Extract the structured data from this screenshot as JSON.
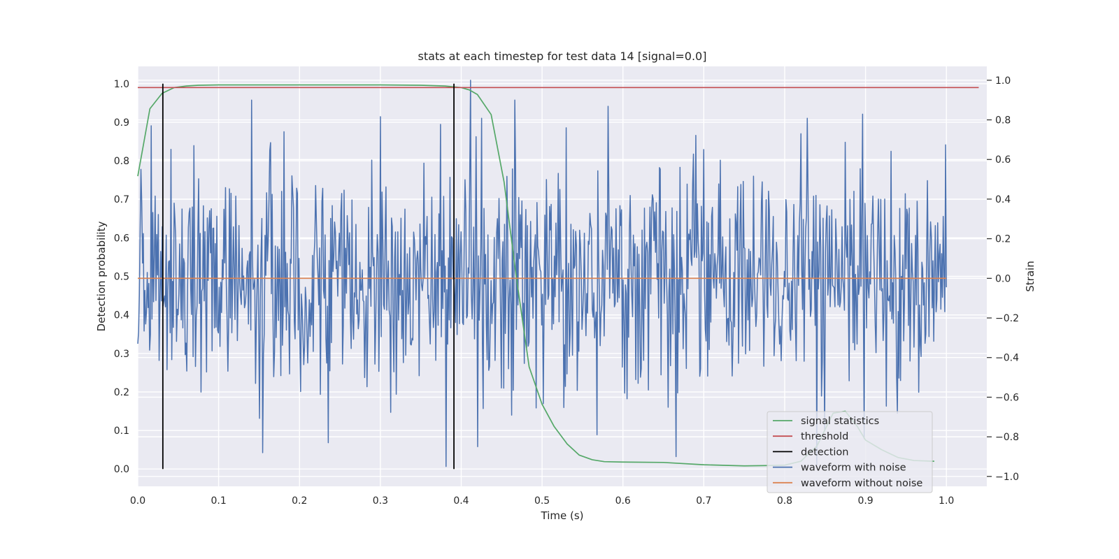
{
  "chart_data": {
    "type": "line",
    "title": "stats at each timestep for test data 14 [signal=0.0]",
    "xlabel": "Time (s)",
    "ylabel": "Detection probability",
    "ylabel_right": "Strain",
    "xlim": [
      0.0,
      1.05
    ],
    "ylim": [
      -0.045,
      1.045
    ],
    "ylim_right": [
      -1.05,
      1.07
    ],
    "x_ticks": [
      "0.0",
      "0.1",
      "0.2",
      "0.3",
      "0.4",
      "0.5",
      "0.6",
      "0.7",
      "0.8",
      "0.9",
      "1.0"
    ],
    "y_ticks": [
      "0.0",
      "0.1",
      "0.2",
      "0.3",
      "0.4",
      "0.5",
      "0.6",
      "0.7",
      "0.8",
      "0.9",
      "1.0"
    ],
    "y_right_ticks": [
      "−1.0",
      "−0.8",
      "−0.6",
      "−0.4",
      "−0.2",
      "0.0",
      "0.2",
      "0.4",
      "0.6",
      "0.8",
      "1.0"
    ],
    "grid": true,
    "legend_position": "lower-right",
    "legend": [
      {
        "label": "signal statistics",
        "color": "#55a868"
      },
      {
        "label": "threshold",
        "color": "#c44e52"
      },
      {
        "label": "detection",
        "color": "#000000"
      },
      {
        "label": "waveform with noise",
        "color": "#4c72b0"
      },
      {
        "label": "waveform without noise",
        "color": "#dd8452"
      }
    ],
    "series": [
      {
        "name": "signal statistics",
        "axis": "left",
        "color": "#55a868",
        "x": [
          0.0,
          0.015,
          0.03,
          0.045,
          0.06,
          0.075,
          0.1,
          0.2,
          0.3,
          0.35,
          0.38,
          0.4,
          0.41,
          0.42,
          0.437,
          0.453,
          0.468,
          0.484,
          0.5,
          0.515,
          0.531,
          0.546,
          0.562,
          0.577,
          0.6,
          0.65,
          0.7,
          0.75,
          0.78,
          0.8,
          0.82,
          0.84,
          0.86,
          0.875,
          0.89,
          0.9,
          0.92,
          0.94,
          0.96,
          0.985
        ],
        "values": [
          0.76,
          0.935,
          0.975,
          0.99,
          0.994,
          0.996,
          0.997,
          0.997,
          0.997,
          0.996,
          0.994,
          0.99,
          0.984,
          0.972,
          0.92,
          0.745,
          0.5,
          0.265,
          0.168,
          0.11,
          0.065,
          0.036,
          0.024,
          0.019,
          0.018,
          0.017,
          0.011,
          0.008,
          0.009,
          0.01,
          0.02,
          0.06,
          0.145,
          0.15,
          0.11,
          0.075,
          0.05,
          0.03,
          0.022,
          0.02
        ]
      },
      {
        "name": "threshold",
        "axis": "left",
        "color": "#c44e52",
        "x": [
          0.0,
          1.04
        ],
        "values": [
          0.99,
          0.99
        ]
      },
      {
        "name": "waveform without noise",
        "axis": "right",
        "color": "#dd8452",
        "x": [
          0.0,
          1.0
        ],
        "values": [
          0.0,
          0.0
        ]
      }
    ],
    "detections": [
      0.031,
      0.391
    ],
    "detection_range": [
      0.0,
      1.0
    ],
    "noise": {
      "name": "waveform with noise",
      "axis": "right",
      "color": "#4c72b0",
      "x_range": [
        0.0,
        1.0
      ],
      "n_points": 1024,
      "std": 0.27,
      "highlights": [
        {
          "x": 0.0,
          "y": -0.33
        },
        {
          "x": 0.004,
          "y": 0.55
        },
        {
          "x": 0.017,
          "y": 0.77
        },
        {
          "x": 0.069,
          "y": 0.67
        },
        {
          "x": 0.181,
          "y": 0.74
        },
        {
          "x": 0.236,
          "y": -0.83
        },
        {
          "x": 0.381,
          "y": -0.95
        },
        {
          "x": 0.412,
          "y": 1.0
        },
        {
          "x": 0.42,
          "y": -0.85
        },
        {
          "x": 0.53,
          "y": 0.76
        },
        {
          "x": 0.568,
          "y": -0.79
        },
        {
          "x": 0.82,
          "y": 0.73
        },
        {
          "x": 0.84,
          "y": -0.94
        }
      ]
    }
  }
}
